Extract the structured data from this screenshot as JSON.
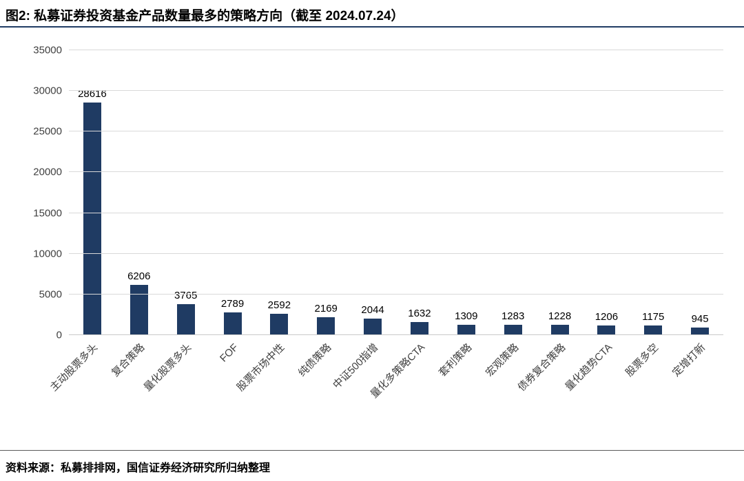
{
  "title": "图2: 私募证券投资基金产品数量最多的策略方向（截至 2024.07.24）",
  "source": "资料来源：私募排排网，国信证券经济研究所归纳整理",
  "colors": {
    "bar": "#1f3b63",
    "title_rule": "#1f3b63",
    "gridline": "#d9d9d9",
    "axis_text": "#3f3f3f"
  },
  "chart_data": {
    "type": "bar",
    "title": "私募证券投资基金产品数量最多的策略方向（截至 2024.07.24）",
    "categories": [
      "主动股票多头",
      "复合策略",
      "量化股票多头",
      "FOF",
      "股票市场中性",
      "纯债策略",
      "中证500指增",
      "量化多策略CTA",
      "套利策略",
      "宏观策略",
      "债券复合策略",
      "量化趋势CTA",
      "股票多空",
      "定增打新"
    ],
    "values": [
      28616,
      6206,
      3765,
      2789,
      2592,
      2169,
      2044,
      1632,
      1309,
      1283,
      1228,
      1206,
      1175,
      945
    ],
    "xlabel": "",
    "ylabel": "",
    "ylim": [
      0,
      35000
    ],
    "ytick_step": 5000,
    "grid": true,
    "legend": "none",
    "value_labels": true
  }
}
